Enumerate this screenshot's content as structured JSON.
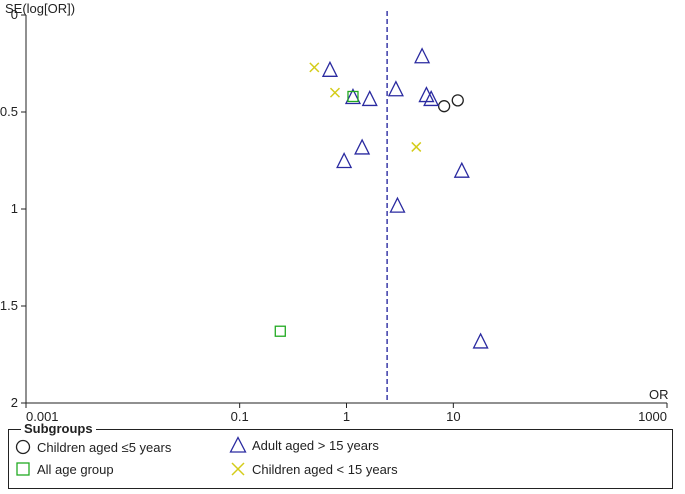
{
  "chart_data": {
    "type": "scatter",
    "title": "",
    "xlabel": "OR",
    "ylabel": "SE(log[OR])",
    "xscale": "log",
    "xlim": [
      0.001,
      1000
    ],
    "ylim": [
      0,
      2
    ],
    "yinverted": true,
    "xticks": [
      {
        "value": 0.001,
        "label": "0.001"
      },
      {
        "value": 0.1,
        "label": "0.1"
      },
      {
        "value": 1,
        "label": "1"
      },
      {
        "value": 10,
        "label": "10"
      },
      {
        "value": 1000,
        "label": "1000"
      }
    ],
    "yticks": [
      {
        "value": 0,
        "label": "0"
      },
      {
        "value": 0.5,
        "label": "0.5"
      },
      {
        "value": 1,
        "label": "1"
      },
      {
        "value": 1.5,
        "label": "1.5"
      },
      {
        "value": 2,
        "label": "2"
      }
    ],
    "reference_line": {
      "x": 2.4,
      "style": "dashed",
      "color": "#3a3aa8"
    },
    "legend": {
      "title": "Subgroups",
      "placement": "bottom"
    },
    "series": [
      {
        "name": "Children aged ≤5 years",
        "marker": "circle",
        "color": "#222222",
        "points": [
          {
            "x": 8.2,
            "y": 0.47
          },
          {
            "x": 11,
            "y": 0.44
          }
        ]
      },
      {
        "name": "Adult aged > 15 years",
        "marker": "triangle",
        "color": "#2a2aa0",
        "points": [
          {
            "x": 5.1,
            "y": 0.21
          },
          {
            "x": 0.7,
            "y": 0.28
          },
          {
            "x": 2.9,
            "y": 0.38
          },
          {
            "x": 5.6,
            "y": 0.41
          },
          {
            "x": 6.2,
            "y": 0.43
          },
          {
            "x": 1.15,
            "y": 0.42
          },
          {
            "x": 1.65,
            "y": 0.43
          },
          {
            "x": 1.4,
            "y": 0.68
          },
          {
            "x": 0.95,
            "y": 0.75
          },
          {
            "x": 12,
            "y": 0.8
          },
          {
            "x": 3.0,
            "y": 0.98
          },
          {
            "x": 18,
            "y": 1.68
          }
        ]
      },
      {
        "name": "All age group",
        "marker": "square",
        "color": "#22aa22",
        "points": [
          {
            "x": 1.15,
            "y": 0.42
          },
          {
            "x": 0.24,
            "y": 1.63
          }
        ]
      },
      {
        "name": "Children aged < 15 years",
        "marker": "x",
        "color": "#d4cc1a",
        "points": [
          {
            "x": 0.5,
            "y": 0.27
          },
          {
            "x": 0.78,
            "y": 0.4
          },
          {
            "x": 4.5,
            "y": 0.68
          }
        ]
      }
    ]
  }
}
